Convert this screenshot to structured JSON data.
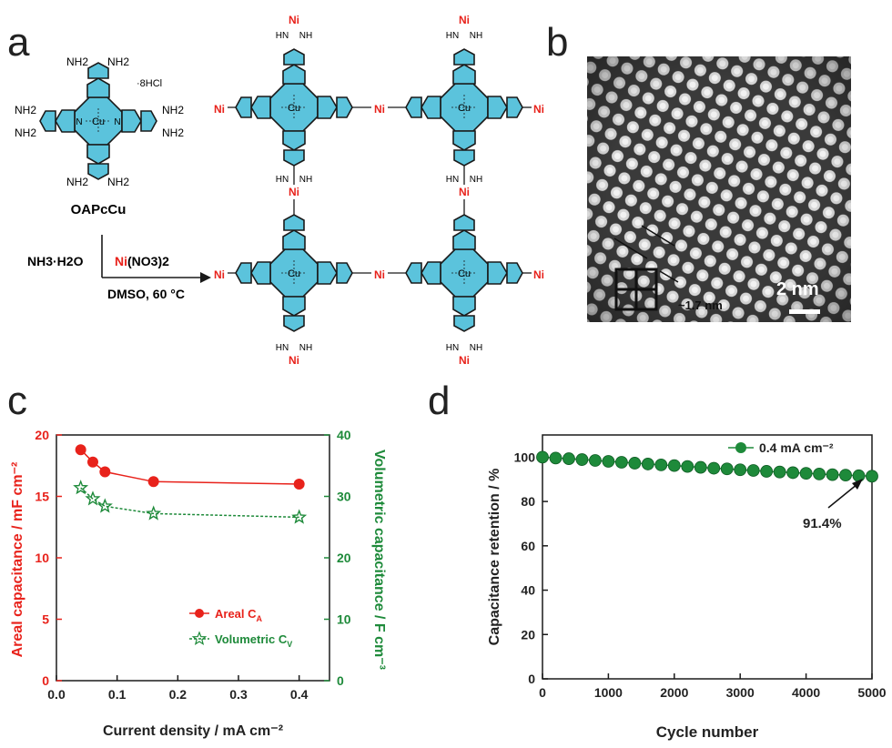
{
  "panels": {
    "a": "a",
    "b": "b",
    "c": "c",
    "d": "d"
  },
  "scheme": {
    "monomer_name": "OAPcCu",
    "hcl_salt": "·8HCl",
    "reagent_left": "NH3·H2O",
    "reagent_metal": "Ni",
    "reagent_metal_rest": "(NO3)2",
    "conditions": "DMSO, 60 °C",
    "metal_center": "Cu",
    "node_metal": "Ni",
    "amine": "NH2",
    "ring_n": "N",
    "bridge_nh": "NH",
    "bridge_hn": "HN",
    "colors": {
      "pc_fill": "#5bc3dc",
      "ni_red": "#e8221b",
      "bond": "#1a1a1a"
    }
  },
  "tem": {
    "scale_label": "2 nm",
    "spacing_label": "~1.7 nm"
  },
  "chart_data": [
    {
      "panel": "c",
      "type": "line",
      "xlabel": "Current density / mA cm⁻²",
      "ylabel_left": "Areal capacitance / mF cm⁻²",
      "ylabel_right": "Volumetric capacitance / F cm⁻³",
      "xlim": [
        0,
        0.45
      ],
      "ylim_left": [
        0,
        20
      ],
      "ylim_right": [
        0,
        40
      ],
      "xticks": [
        "0.0",
        "0.1",
        "0.2",
        "0.3",
        "0.4"
      ],
      "yticks_left": [
        "0",
        "5",
        "10",
        "15",
        "20"
      ],
      "yticks_right": [
        "0",
        "10",
        "20",
        "30",
        "40"
      ],
      "legend_position": "bottom-right",
      "series": [
        {
          "name": "Areal C",
          "subscript": "A",
          "axis": "left",
          "marker": "circle",
          "color": "#e8221b",
          "x": [
            0.04,
            0.06,
            0.08,
            0.16,
            0.4
          ],
          "values": [
            18.8,
            17.8,
            17.0,
            16.2,
            16.0
          ]
        },
        {
          "name": "Volumetric C",
          "subscript": "V",
          "axis": "right",
          "marker": "star",
          "color": "#1e8a3a",
          "x": [
            0.04,
            0.06,
            0.08,
            0.16,
            0.4
          ],
          "values": [
            31.4,
            29.6,
            28.4,
            27.2,
            26.6
          ]
        }
      ]
    },
    {
      "panel": "d",
      "type": "line",
      "xlabel": "Cycle number",
      "ylabel": "Capacitance retention / %",
      "xlim": [
        0,
        5000
      ],
      "ylim": [
        0,
        110
      ],
      "xticks": [
        "0",
        "1000",
        "2000",
        "3000",
        "4000",
        "5000"
      ],
      "yticks": [
        "0",
        "20",
        "40",
        "60",
        "80",
        "100"
      ],
      "legend_position": "top-right",
      "annotation": "91.4%",
      "series": [
        {
          "name": "0.4 mA cm⁻²",
          "marker": "circle",
          "color": "#1e8a3a",
          "x": [
            0,
            200,
            400,
            600,
            800,
            1000,
            1200,
            1400,
            1600,
            1800,
            2000,
            2200,
            2400,
            2600,
            2800,
            3000,
            3200,
            3400,
            3600,
            3800,
            4000,
            4200,
            4400,
            4600,
            4800,
            5000
          ],
          "values": [
            100.0,
            99.6,
            99.3,
            98.9,
            98.5,
            98.1,
            97.7,
            97.3,
            96.9,
            96.5,
            96.2,
            95.8,
            95.4,
            95.0,
            94.7,
            94.3,
            94.0,
            93.6,
            93.3,
            93.0,
            92.7,
            92.4,
            92.1,
            91.9,
            91.6,
            91.4
          ]
        }
      ]
    }
  ]
}
